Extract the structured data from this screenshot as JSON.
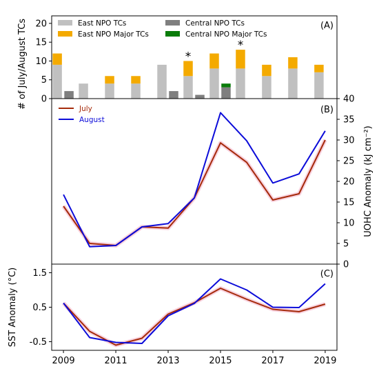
{
  "chart_data": [
    {
      "panel": "(A)",
      "type": "bar",
      "ylabel": "# of July/August TCs",
      "ylim": [
        0,
        22
      ],
      "yticks": [
        0,
        5,
        10,
        15,
        20
      ],
      "x": [
        2009,
        2010,
        2011,
        2012,
        2013,
        2014,
        2015,
        2016,
        2017,
        2018,
        2019
      ],
      "stacked": true,
      "series": [
        {
          "name": "East NPO TCs",
          "color": "#c0c0c0",
          "group": "east",
          "values": [
            9,
            4,
            4,
            4,
            9,
            6,
            8,
            8,
            6,
            8,
            7
          ]
        },
        {
          "name": "East NPO Major TCs",
          "color": "#f4aa00",
          "group": "east",
          "values": [
            3,
            0,
            2,
            2,
            0,
            4,
            4,
            5,
            3,
            3,
            2
          ]
        },
        {
          "name": "Central NPO TCs",
          "color": "#7f7f7f",
          "group": "central",
          "values": [
            2,
            0,
            0,
            0,
            2,
            1,
            3,
            0,
            0,
            0,
            0
          ]
        },
        {
          "name": "Central NPO Major TCs",
          "color": "#0a7c0a",
          "group": "central",
          "values": [
            0,
            0,
            0,
            0,
            0,
            0,
            1,
            0,
            0,
            0,
            0
          ]
        }
      ],
      "annotations": [
        {
          "x": 2014,
          "text": "*"
        },
        {
          "x": 2016,
          "text": "*"
        }
      ]
    },
    {
      "panel": "(B)",
      "type": "line",
      "ylabel": "UOHC Anomaly (kJ cm⁻²)",
      "ylim": [
        0,
        40
      ],
      "yticks": [
        0,
        5,
        10,
        15,
        20,
        25,
        30,
        35,
        40
      ],
      "x": [
        2009,
        2010,
        2011,
        2012,
        2013,
        2014,
        2015,
        2016,
        2017,
        2018,
        2019
      ],
      "series": [
        {
          "name": "July",
          "color": "#a52a0a",
          "values": [
            14,
            5,
            4.5,
            9,
            8.7,
            16,
            29.3,
            24.6,
            15.5,
            17,
            30
          ]
        },
        {
          "name": "August",
          "color": "#0c0cd9",
          "values": [
            16.8,
            4.2,
            4.5,
            9,
            9.8,
            16,
            36.6,
            29.8,
            19.6,
            21.8,
            32.2
          ]
        }
      ]
    },
    {
      "panel": "(C)",
      "type": "line",
      "ylabel": "SST Anomaly (°C)",
      "ylim": [
        -0.75,
        1.75
      ],
      "yticks": [
        -0.5,
        0.5,
        1.5
      ],
      "ytick_labels": [
        "-0.5",
        "0.5",
        "1.5"
      ],
      "xlabel": "",
      "xticks": [
        2009,
        2011,
        2013,
        2015,
        2017,
        2019
      ],
      "x": [
        2009,
        2010,
        2011,
        2012,
        2013,
        2014,
        2015,
        2016,
        2017,
        2018,
        2019
      ],
      "series": [
        {
          "name": "July",
          "color": "#a52a0a",
          "values": [
            0.62,
            -0.2,
            -0.6,
            -0.4,
            0.3,
            0.63,
            1.05,
            0.73,
            0.44,
            0.37,
            0.59
          ]
        },
        {
          "name": "August",
          "color": "#0c0cd9",
          "values": [
            0.62,
            -0.38,
            -0.52,
            -0.55,
            0.25,
            0.61,
            1.32,
            1.0,
            0.5,
            0.49,
            1.18
          ]
        }
      ]
    }
  ]
}
